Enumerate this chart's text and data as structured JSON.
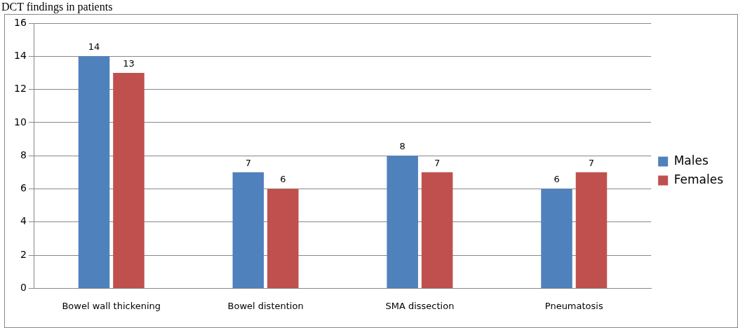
{
  "chart_data": {
    "type": "bar",
    "title": "DCT findings in patients",
    "categories": [
      "Bowel wall thickening",
      "Bowel distention",
      "SMA dissection",
      "Pneumatosis"
    ],
    "series": [
      {
        "name": "Males",
        "color": "#4f81bd",
        "values": [
          14,
          7,
          8,
          6
        ]
      },
      {
        "name": "Females",
        "color": "#c0504d",
        "values": [
          13,
          6,
          7,
          7
        ]
      }
    ],
    "ylim": [
      0,
      16
    ],
    "yticks": [
      0,
      2,
      4,
      6,
      8,
      10,
      12,
      14,
      16
    ],
    "grid": "y",
    "legend": "right",
    "data_labels": true
  }
}
